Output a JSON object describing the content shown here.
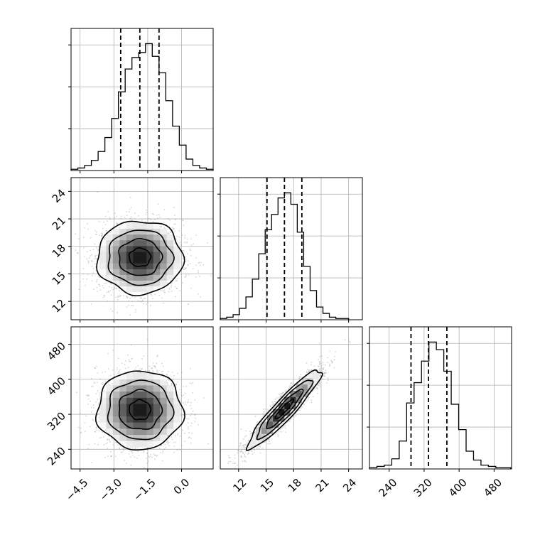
{
  "chart_data": {
    "type": "corner",
    "title": "",
    "grid": true,
    "colors": {
      "ink": "#000000",
      "grid": "#b0b0b0",
      "scatter": "#888888"
    },
    "parameters": [
      {
        "index": 0,
        "xlim": [
          -4.9,
          1.4
        ],
        "ticks": [
          -4.5,
          -3.0,
          -1.5,
          0.0
        ],
        "tick_labels": [
          "−4.5",
          "−3.0",
          "−1.5",
          "0.0"
        ]
      },
      {
        "index": 1,
        "xlim": [
          10.0,
          25.5
        ],
        "ticks": [
          12,
          15,
          18,
          21,
          24
        ],
        "tick_labels": [
          "12",
          "15",
          "18",
          "21",
          "24"
        ]
      },
      {
        "index": 2,
        "xlim": [
          195,
          520
        ],
        "ticks": [
          240,
          320,
          400,
          480
        ],
        "tick_labels": [
          "240",
          "320",
          "400",
          "480"
        ]
      }
    ],
    "marginals": [
      {
        "param": 0,
        "quantiles": [
          -2.7,
          -1.85,
          -1.0
        ],
        "bin_edges": [
          -4.9,
          -4.6,
          -4.3,
          -4.0,
          -3.7,
          -3.4,
          -3.1,
          -2.8,
          -2.5,
          -2.2,
          -1.9,
          -1.6,
          -1.3,
          -1.0,
          -0.7,
          -0.4,
          -0.1,
          0.2,
          0.5,
          0.8,
          1.1,
          1.4
        ],
        "counts": [
          0.01,
          0.02,
          0.04,
          0.08,
          0.15,
          0.26,
          0.41,
          0.62,
          0.8,
          0.89,
          0.93,
          1.0,
          0.9,
          0.77,
          0.55,
          0.35,
          0.2,
          0.09,
          0.04,
          0.02,
          0.01
        ],
        "ylim": [
          0,
          1.12
        ],
        "yticks": [
          0.33,
          0.66,
          0.99
        ]
      },
      {
        "param": 1,
        "quantiles": [
          15.1,
          17.0,
          18.9
        ],
        "bin_edges": [
          10.0,
          10.7,
          11.4,
          12.1,
          12.8,
          13.5,
          14.2,
          14.9,
          15.6,
          16.3,
          17.0,
          17.7,
          18.4,
          19.1,
          19.8,
          20.5,
          21.2,
          21.9,
          22.6,
          23.3,
          24.0
        ],
        "counts": [
          0.01,
          0.02,
          0.04,
          0.09,
          0.18,
          0.32,
          0.52,
          0.71,
          0.83,
          0.96,
          1.0,
          0.91,
          0.69,
          0.42,
          0.23,
          0.1,
          0.05,
          0.02,
          0.01,
          0.01
        ],
        "ylim": [
          0,
          1.12
        ],
        "yticks": [
          0.33,
          0.66,
          0.99
        ]
      },
      {
        "param": 2,
        "quantiles": [
          290,
          330,
          372
        ],
        "bin_edges": [
          195,
          212,
          229,
          246,
          263,
          280,
          297,
          314,
          331,
          348,
          365,
          382,
          399,
          416,
          433,
          450,
          467,
          484,
          501,
          518
        ],
        "counts": [
          0.01,
          0.02,
          0.03,
          0.08,
          0.22,
          0.52,
          0.68,
          0.85,
          1.0,
          0.94,
          0.77,
          0.51,
          0.31,
          0.14,
          0.07,
          0.03,
          0.02,
          0.01,
          0.01
        ],
        "ylim": [
          0,
          1.12
        ],
        "yticks": [
          0.33,
          0.66,
          0.99
        ]
      }
    ],
    "joints": [
      {
        "x_param": 0,
        "y_param": 1,
        "center": [
          -1.85,
          16.8
        ],
        "sd": [
          0.95,
          2.0
        ],
        "rho": 0.0,
        "n_points": 2200
      },
      {
        "x_param": 0,
        "y_param": 2,
        "center": [
          -1.85,
          330
        ],
        "sd": [
          0.95,
          45
        ],
        "rho": 0.0,
        "n_points": 2200
      },
      {
        "x_param": 1,
        "y_param": 2,
        "center": [
          17.0,
          332
        ],
        "sd": [
          2.0,
          45
        ],
        "rho": 0.93,
        "n_points": 2200
      }
    ]
  }
}
